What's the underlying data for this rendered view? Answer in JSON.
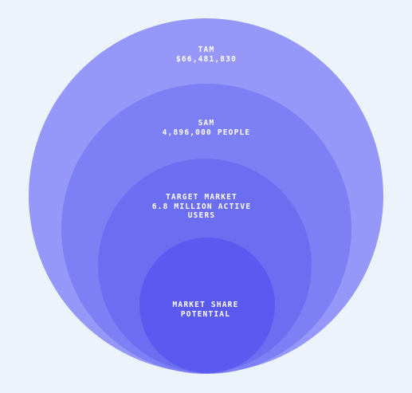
{
  "diagram": {
    "type": "nested-circles",
    "colors": {
      "background": "#edf3fa",
      "tam": "#9598f8",
      "sam": "#7d7ff4",
      "target": "#6c6ef1",
      "share": "#5a59f0",
      "text": "#ffffff"
    },
    "tam": {
      "title": "TAM",
      "value": "$66,481,830"
    },
    "sam": {
      "title": "SAM",
      "value": "4,896,000 PEOPLE"
    },
    "target_market": {
      "title": "TARGET MARKET",
      "value_line1": "6.8 MILLION ACTIVE",
      "value_line2": "USERS"
    },
    "market_share": {
      "title_line1": "MARKET SHARE",
      "title_line2": "POTENTIAL"
    }
  }
}
